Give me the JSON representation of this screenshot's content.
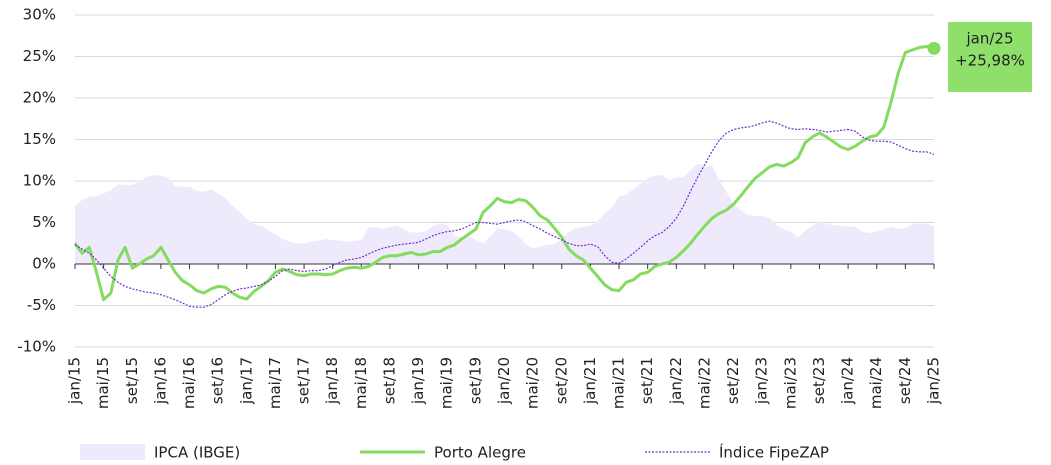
{
  "chart_data": {
    "type": "line",
    "categories": [
      "jan/15",
      null,
      null,
      null,
      "mai/15",
      null,
      null,
      null,
      "set/15",
      null,
      null,
      null,
      "jan/16",
      null,
      null,
      null,
      "mai/16",
      null,
      null,
      null,
      "set/16",
      null,
      null,
      null,
      "jan/17",
      null,
      null,
      null,
      "mai/17",
      null,
      null,
      null,
      "set/17",
      null,
      null,
      null,
      "jan/18",
      null,
      null,
      null,
      "mai/18",
      null,
      null,
      null,
      "set/18",
      null,
      null,
      null,
      "jan/19",
      null,
      null,
      null,
      "mai/19",
      null,
      null,
      null,
      "set/19",
      null,
      null,
      null,
      "jan/20",
      null,
      null,
      null,
      "mai/20",
      null,
      null,
      null,
      "set/20",
      null,
      null,
      null,
      "jan/21",
      null,
      null,
      null,
      "mai/21",
      null,
      null,
      null,
      "set/21",
      null,
      null,
      null,
      "jan/22",
      null,
      null,
      null,
      "mai/22",
      null,
      null,
      null,
      "set/22",
      null,
      null,
      null,
      "jan/23",
      null,
      null,
      null,
      "mai/23",
      null,
      null,
      null,
      "set/23",
      null,
      null,
      null,
      "jan/24",
      null,
      null,
      null,
      "mai/24",
      null,
      null,
      null,
      "set/24",
      null,
      null,
      null,
      "jan/25"
    ],
    "series": [
      {
        "name": "IPCA (IBGE)",
        "color": "#efeafb",
        "style": "area",
        "values": [
          7.1,
          7.7,
          8.1,
          8.2,
          8.5,
          8.9,
          9.6,
          9.5,
          9.5,
          9.9,
          10.5,
          10.7,
          10.7,
          10.4,
          9.4,
          9.3,
          9.3,
          8.8,
          8.7,
          9.0,
          8.5,
          7.9,
          7.0,
          6.3,
          5.4,
          4.8,
          4.6,
          4.1,
          3.6,
          3.0,
          2.7,
          2.5,
          2.5,
          2.7,
          2.8,
          3.0,
          2.9,
          2.8,
          2.7,
          2.8,
          2.9,
          4.4,
          4.5,
          4.2,
          4.5,
          4.6,
          4.1,
          3.8,
          3.8,
          3.9,
          4.6,
          4.9,
          4.7,
          3.4,
          3.2,
          3.4,
          2.9,
          2.5,
          3.3,
          4.3,
          4.2,
          4.0,
          3.3,
          2.4,
          1.9,
          2.1,
          2.3,
          2.4,
          3.1,
          3.9,
          4.3,
          4.5,
          4.6,
          5.2,
          6.1,
          6.8,
          8.1,
          8.4,
          9.0,
          9.7,
          10.3,
          10.7,
          10.7,
          10.1,
          10.4,
          10.5,
          11.3,
          12.1,
          11.7,
          11.9,
          10.1,
          8.7,
          7.2,
          6.5,
          5.9,
          5.8,
          5.8,
          5.6,
          4.7,
          4.2,
          3.9,
          3.2,
          4.0,
          4.6,
          5.2,
          4.8,
          4.7,
          4.6,
          4.5,
          4.5,
          3.9,
          3.7,
          3.9,
          4.2,
          4.5,
          4.2,
          4.4,
          4.8,
          4.9,
          4.8,
          4.6
        ]
      },
      {
        "name": "Porto Alegre",
        "color": "#84dc5e",
        "style": "line",
        "values": [
          2.5,
          1.3,
          2.0,
          -1.0,
          -4.3,
          -3.5,
          0.5,
          2.0,
          -0.5,
          0.0,
          0.6,
          1.0,
          2.0,
          0.5,
          -1.0,
          -2.0,
          -2.5,
          -3.2,
          -3.5,
          -3.0,
          -2.7,
          -2.8,
          -3.5,
          -4.0,
          -4.2,
          -3.3,
          -2.7,
          -2.0,
          -1.0,
          -0.6,
          -0.9,
          -1.3,
          -1.4,
          -1.2,
          -1.2,
          -1.3,
          -1.2,
          -0.8,
          -0.5,
          -0.4,
          -0.5,
          -0.3,
          0.2,
          0.8,
          1.0,
          1.0,
          1.2,
          1.4,
          1.1,
          1.2,
          1.5,
          1.5,
          2.0,
          2.3,
          3.0,
          3.6,
          4.2,
          6.2,
          7.0,
          7.9,
          7.5,
          7.4,
          7.8,
          7.6,
          6.8,
          5.8,
          5.3,
          4.3,
          3.2,
          1.8,
          1.0,
          0.5,
          -0.5,
          -1.5,
          -2.5,
          -3.1,
          -3.2,
          -2.2,
          -1.9,
          -1.2,
          -1.0,
          -0.3,
          0.0,
          0.2,
          0.8,
          1.6,
          2.5,
          3.6,
          4.6,
          5.5,
          6.1,
          6.5,
          7.2,
          8.2,
          9.3,
          10.3,
          11.0,
          11.7,
          12.0,
          11.8,
          12.2,
          12.8,
          14.6,
          15.3,
          15.8,
          15.3,
          14.7,
          14.1,
          13.8,
          14.2,
          14.8,
          15.3,
          15.5,
          16.5,
          19.5,
          23.0,
          25.5,
          25.8,
          26.1,
          26.2,
          25.98
        ]
      },
      {
        "name": "Índice FipeZAP",
        "color": "#6b2fd1",
        "style": "dotted",
        "values": [
          2.3,
          1.8,
          1.3,
          0.5,
          -0.5,
          -1.5,
          -2.2,
          -2.7,
          -3.0,
          -3.2,
          -3.4,
          -3.5,
          -3.7,
          -4.0,
          -4.3,
          -4.7,
          -5.1,
          -5.2,
          -5.2,
          -4.9,
          -4.3,
          -3.7,
          -3.3,
          -3.0,
          -2.9,
          -2.7,
          -2.5,
          -2.1,
          -1.5,
          -0.8,
          -0.6,
          -0.8,
          -0.9,
          -0.8,
          -0.8,
          -0.6,
          -0.2,
          0.2,
          0.5,
          0.6,
          0.8,
          1.2,
          1.6,
          1.9,
          2.1,
          2.3,
          2.4,
          2.5,
          2.6,
          3.0,
          3.4,
          3.7,
          3.9,
          4.0,
          4.2,
          4.6,
          5.0,
          5.0,
          4.9,
          4.8,
          5.0,
          5.2,
          5.3,
          5.1,
          4.6,
          4.2,
          3.7,
          3.3,
          2.9,
          2.5,
          2.2,
          2.2,
          2.4,
          2.1,
          1.0,
          0.2,
          0.1,
          0.6,
          1.3,
          2.0,
          2.8,
          3.4,
          3.8,
          4.5,
          5.5,
          7.0,
          8.8,
          10.5,
          12.0,
          13.6,
          14.9,
          15.8,
          16.2,
          16.4,
          16.5,
          16.7,
          17.0,
          17.2,
          17.0,
          16.6,
          16.3,
          16.2,
          16.3,
          16.2,
          16.1,
          15.9,
          16.0,
          16.1,
          16.2,
          16.0,
          15.3,
          14.9,
          14.8,
          14.8,
          14.7,
          14.3,
          13.9,
          13.6,
          13.5,
          13.5,
          13.2
        ]
      }
    ],
    "ylim": [
      -10,
      30
    ],
    "yticks": [
      {
        "value": -10,
        "label": "-10%"
      },
      {
        "value": -5,
        "label": "-5%"
      },
      {
        "value": 0,
        "label": "0%"
      },
      {
        "value": 5,
        "label": "5%"
      },
      {
        "value": 10,
        "label": "10%"
      },
      {
        "value": 15,
        "label": "15%"
      },
      {
        "value": 20,
        "label": "20%"
      },
      {
        "value": 25,
        "label": "25%"
      },
      {
        "value": 30,
        "label": "30%"
      }
    ],
    "grid": true,
    "legend": "bottom",
    "annotation": {
      "lines": [
        "jan/25",
        "+25,98%"
      ],
      "color": "#8ee06a"
    }
  }
}
